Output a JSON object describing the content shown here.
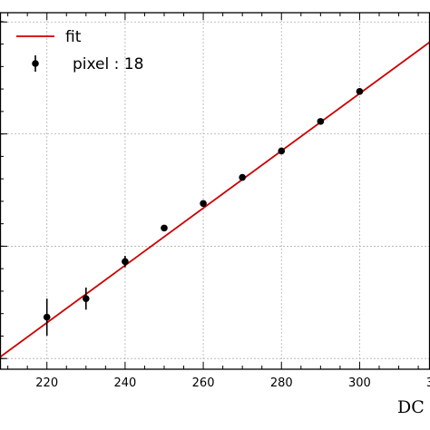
{
  "chart_data": {
    "type": "scatter",
    "xlabel": "DC",
    "xlim": [
      208,
      318
    ],
    "ylim": [
      0,
      100
    ],
    "x_ticks": [
      220,
      240,
      260,
      280,
      300
    ],
    "x_tick_labels": [
      "220",
      "240",
      "260",
      "280",
      "300"
    ],
    "y_gridlines": [
      3,
      34.5,
      66,
      97.4
    ],
    "grid": true,
    "legend_position": "top-left",
    "legend": [
      "fit",
      "pixel : 18"
    ],
    "fit_line": {
      "name": "fit",
      "color": "#cc0000",
      "x": [
        208,
        318
      ],
      "y": [
        3.4,
        91.8
      ]
    },
    "series": [
      {
        "name": "pixel : 18",
        "color": "#000000",
        "x": [
          220,
          230,
          240,
          250,
          260,
          270,
          280,
          290,
          300
        ],
        "y": [
          14.6,
          19.8,
          30.2,
          39.6,
          46.5,
          53.8,
          61.2,
          69.5,
          77.9
        ],
        "yerr": [
          5.2,
          3.1,
          1.6,
          0.8,
          0.8,
          0.8,
          0.8,
          0.8,
          0.8
        ]
      }
    ]
  }
}
